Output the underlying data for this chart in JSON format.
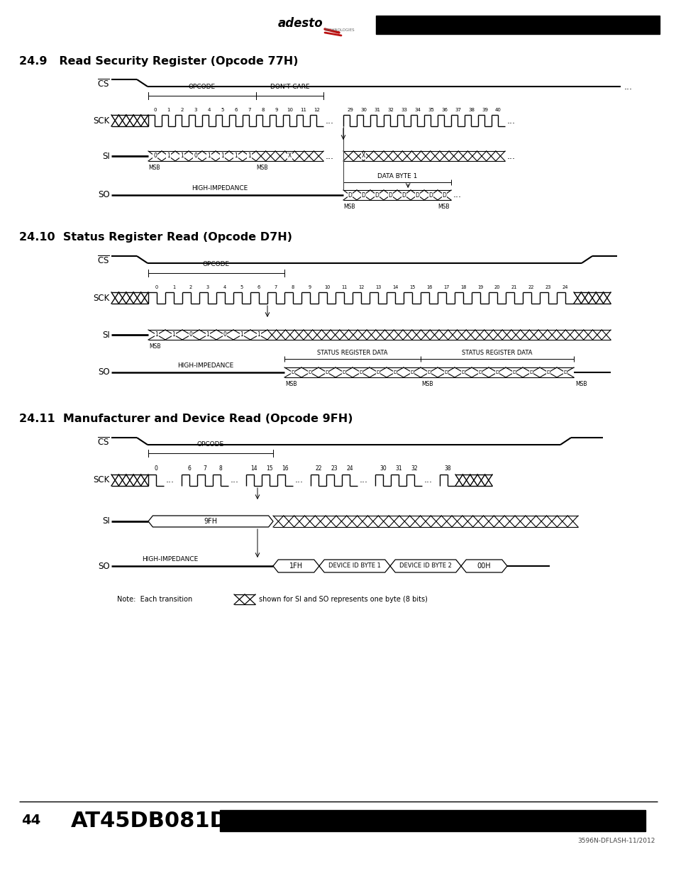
{
  "bg_color": "#ffffff",
  "title1": "24.9   Read Security Register (Opcode 77H)",
  "title2": "24.10  Status Register Read (Opcode D7H)",
  "title3": "24.11  Manufacturer and Device Read (Opcode 9FH)",
  "footer_num": "44",
  "footer_chip": "AT45DB081D",
  "footer_doc": "3596N-DFLASH-11/2012",
  "note_text": "Note:  Each transition",
  "note_text2": "shown for SI and SO represents one byte (8 bits)"
}
